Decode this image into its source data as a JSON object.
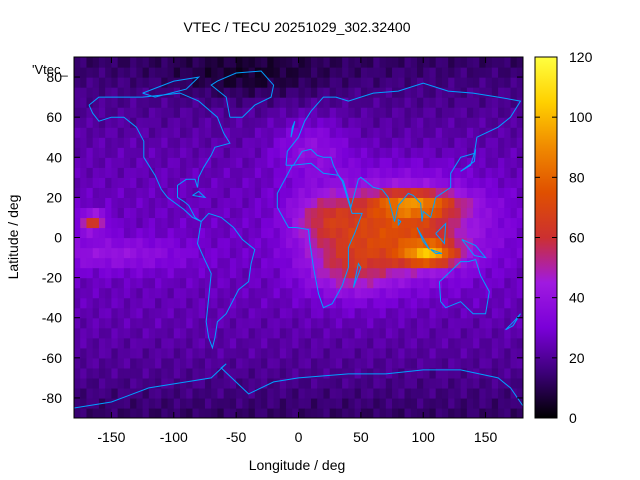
{
  "chart_data": {
    "type": "heatmap",
    "title": "VTEC / TECU 20251029_302.32400",
    "xlabel": "Longitude / deg",
    "ylabel": "Latitude / deg",
    "legend_label": "'Vtec_",
    "xlim": [
      -180,
      180
    ],
    "ylim": [
      -90,
      90
    ],
    "xticks": [
      -150,
      -100,
      -50,
      0,
      50,
      100,
      150
    ],
    "yticks": [
      -80,
      -60,
      -40,
      -20,
      0,
      20,
      40,
      60,
      80
    ],
    "colorbar": {
      "range": [
        0,
        120
      ],
      "ticks": [
        0,
        20,
        40,
        60,
        80,
        100,
        120
      ],
      "colormap": [
        "#000000",
        "#3c0078",
        "#7a00d8",
        "#a01ae0",
        "#cc3030",
        "#e05000",
        "#f08a00",
        "#ffd000",
        "#ffff40"
      ]
    },
    "features": {
      "coastline_color": "#00a0ff",
      "peak_value_approx": 115,
      "peak_location": {
        "lon": 105,
        "lat": -8
      },
      "equatorial_crest_north": {
        "lon": 90,
        "lat": 18,
        "value_approx": 90
      },
      "pacific_enhancement": {
        "lon": -165,
        "lat": 8,
        "value_approx": 65
      },
      "background_value_approx": 25,
      "polar_value_approx": 12
    }
  }
}
